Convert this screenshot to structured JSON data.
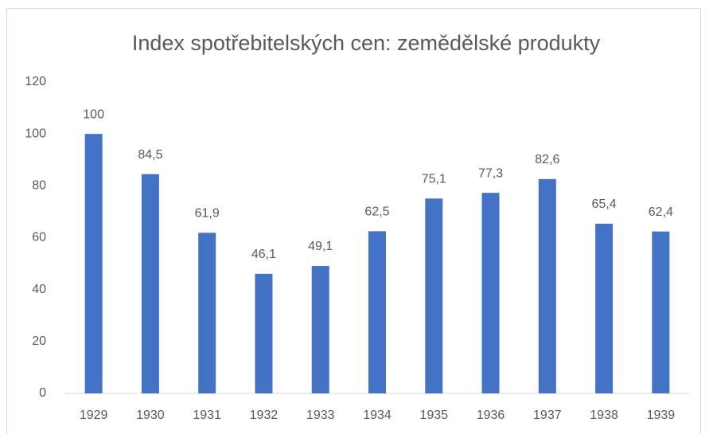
{
  "chart_data": {
    "type": "bar",
    "title": "Index spotřebitelských cen: zemědělské produkty",
    "categories": [
      "1929",
      "1930",
      "1931",
      "1932",
      "1933",
      "1934",
      "1935",
      "1936",
      "1937",
      "1938",
      "1939"
    ],
    "values": [
      100,
      84.5,
      61.9,
      46.1,
      49.1,
      62.5,
      75.1,
      77.3,
      82.6,
      65.4,
      62.4
    ],
    "value_labels": [
      "100",
      "84,5",
      "61,9",
      "46,1",
      "49,1",
      "62,5",
      "75,1",
      "77,3",
      "82,6",
      "65,4",
      "62,4"
    ],
    "color": "#4472c4",
    "ylim": [
      0,
      120
    ],
    "yticks": [
      0,
      20,
      40,
      60,
      80,
      100,
      120
    ],
    "grid": false
  }
}
